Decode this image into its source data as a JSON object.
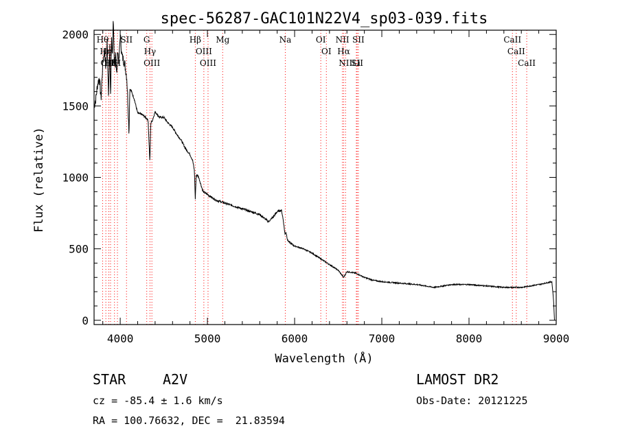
{
  "chart_data": {
    "type": "line",
    "title": "spec-56287-GAC101N22V4_sp03-039.fits",
    "xlabel": "Wavelength (Å)",
    "ylabel": "Flux (relative)",
    "xlim": [
      3700,
      9000
    ],
    "ylim": [
      -30,
      2030
    ],
    "xticks": [
      4000,
      5000,
      6000,
      7000,
      8000,
      9000
    ],
    "yticks": [
      0,
      500,
      1000,
      1500,
      2000
    ],
    "grid": false,
    "series": [
      {
        "x": [
          3700,
          3720,
          3740,
          3760,
          3780,
          3800,
          3820,
          3835,
          3850,
          3865,
          3880,
          3890,
          3900,
          3910,
          3920,
          3933,
          3945,
          3960,
          3970,
          3985,
          4000,
          4020,
          4050,
          4075,
          4090,
          4101,
          4110,
          4130,
          4160,
          4200,
          4250,
          4290,
          4320,
          4340,
          4350,
          4370,
          4400,
          4450,
          4500,
          4550,
          4600,
          4650,
          4700,
          4750,
          4800,
          4830,
          4850,
          4861,
          4870,
          4880,
          4900,
          4950,
          5000,
          5050,
          5100,
          5150,
          5200,
          5300,
          5400,
          5500,
          5600,
          5700,
          5750,
          5800,
          5850,
          5870,
          5890,
          5900,
          5920,
          5950,
          6000,
          6100,
          6200,
          6300,
          6400,
          6500,
          6563,
          6600,
          6700,
          6800,
          6900,
          7000,
          7200,
          7400,
          7600,
          7800,
          8000,
          8200,
          8400,
          8600,
          8800,
          8950,
          8970,
          8980
        ],
        "y": [
          1500,
          1550,
          1650,
          1700,
          1550,
          1800,
          1900,
          1750,
          1950,
          1600,
          1900,
          1550,
          2000,
          1850,
          2100,
          1750,
          1900,
          1700,
          1900,
          1800,
          2000,
          1850,
          1800,
          1700,
          1500,
          1300,
          1620,
          1600,
          1550,
          1450,
          1440,
          1420,
          1400,
          1100,
          1380,
          1400,
          1460,
          1420,
          1420,
          1380,
          1350,
          1300,
          1260,
          1200,
          1160,
          1120,
          1050,
          850,
          1000,
          1020,
          1000,
          900,
          880,
          860,
          840,
          830,
          820,
          800,
          780,
          760,
          740,
          690,
          720,
          760,
          770,
          700,
          600,
          620,
          560,
          540,
          520,
          500,
          470,
          430,
          390,
          350,
          300,
          340,
          330,
          300,
          280,
          270,
          260,
          250,
          230,
          250,
          250,
          240,
          230,
          230,
          250,
          270,
          140,
          0
        ]
      }
    ],
    "annotations": [
      {
        "wave": 3798,
        "label": "Hθ"
      },
      {
        "wave": 3835,
        "label": "Hη"
      },
      {
        "wave": 3869,
        "label": "OIII"
      },
      {
        "wave": 3889,
        "label": "Hζ"
      },
      {
        "wave": 3934,
        "label": "K"
      },
      {
        "wave": 3968,
        "label": "H"
      },
      {
        "wave": 4072,
        "label": "SII"
      },
      {
        "wave": 4304,
        "label": "G"
      },
      {
        "wave": 4341,
        "label": "Hγ"
      },
      {
        "wave": 4363,
        "label": "OIII"
      },
      {
        "wave": 4861,
        "label": "Hβ"
      },
      {
        "wave": 4959,
        "label": "OIII"
      },
      {
        "wave": 5007,
        "label": "OIII"
      },
      {
        "wave": 5175,
        "label": "Mg"
      },
      {
        "wave": 5893,
        "label": "Na"
      },
      {
        "wave": 6300,
        "label": "OI"
      },
      {
        "wave": 6364,
        "label": "OI"
      },
      {
        "wave": 6548,
        "label": "NII"
      },
      {
        "wave": 6563,
        "label": "Hα"
      },
      {
        "wave": 6584,
        "label": "NII"
      },
      {
        "wave": 6708,
        "label": "Li"
      },
      {
        "wave": 6717,
        "label": "SII"
      },
      {
        "wave": 6731,
        "label": "SII"
      },
      {
        "wave": 8498,
        "label": "CaII"
      },
      {
        "wave": 8542,
        "label": "CaII"
      },
      {
        "wave": 8662,
        "label": "CaII"
      }
    ]
  },
  "info": {
    "object_class": "STAR",
    "subclass": "A2V",
    "survey": "LAMOST DR2",
    "cz": "cz = -85.4 ± 1.6 km/s",
    "obs_date": "Obs-Date: 20121225",
    "radec": "RA = 100.76632, DEC =  21.83594"
  },
  "colors": {
    "spectrum": "#000000",
    "line_marker": "#ff0000",
    "axes": "#000000"
  }
}
